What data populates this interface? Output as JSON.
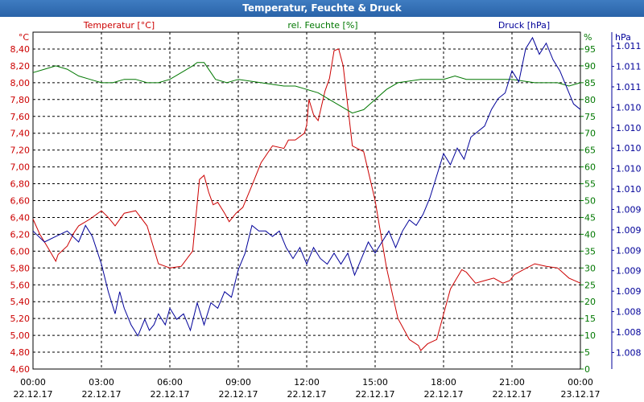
{
  "window": {
    "title": "Temperatur, Feuchte & Druck"
  },
  "colors": {
    "temperature": "#cc0000",
    "humidity": "#007700",
    "pressure": "#000099",
    "titlebar": "#2f6cb3"
  },
  "chart_data": {
    "type": "line",
    "title": "Temperatur, Feuchte & Druck",
    "grid": true,
    "x_ticks": [
      {
        "time": "00:00",
        "date": "22.12.17"
      },
      {
        "time": "03:00",
        "date": "22.12.17"
      },
      {
        "time": "06:00",
        "date": "22.12.17"
      },
      {
        "time": "09:00",
        "date": "22.12.17"
      },
      {
        "time": "12:00",
        "date": "22.12.17"
      },
      {
        "time": "15:00",
        "date": "22.12.17"
      },
      {
        "time": "18:00",
        "date": "22.12.17"
      },
      {
        "time": "21:00",
        "date": "22.12.17"
      },
      {
        "time": "00:00",
        "date": "23.12.17"
      }
    ],
    "x_hours_range": [
      0,
      24
    ],
    "axes": {
      "temperature": {
        "label": "Temperatur [°C]",
        "unit": "°C",
        "range": [
          4.6,
          8.6
        ],
        "ticks": [
          "4,60",
          "4,80",
          "5,00",
          "5,20",
          "5,40",
          "5,60",
          "5,80",
          "6,00",
          "6,20",
          "6,40",
          "6,60",
          "6,80",
          "7,00",
          "7,20",
          "7,40",
          "7,60",
          "7,80",
          "8,00",
          "8,20",
          "8,40"
        ]
      },
      "humidity": {
        "label": "rel. Feuchte [%]",
        "unit": "%",
        "range": [
          0,
          100
        ],
        "ticks": [
          "0",
          "5",
          "10",
          "15",
          "20",
          "25",
          "30",
          "35",
          "40",
          "45",
          "50",
          "55",
          "60",
          "65",
          "70",
          "75",
          "80",
          "85",
          "90",
          "95"
        ]
      },
      "pressure": {
        "label": "Druck [hPa]",
        "unit": "hPa",
        "range": [
          1007.9,
          1010.95
        ],
        "ticks": [
          "1.008",
          "1.008",
          "1.008",
          "1.009",
          "1.009",
          "1.009",
          "1.009",
          "1.009",
          "1.010",
          "1.010",
          "1.010",
          "1.010",
          "1.010",
          "1.011",
          "1.011",
          "1.011"
        ]
      }
    },
    "series": [
      {
        "name": "Temperatur [°C]",
        "x": [
          0,
          0.3,
          0.7,
          1.0,
          1.1,
          1.5,
          1.8,
          2.0,
          2.5,
          3.0,
          3.3,
          3.6,
          4.0,
          4.5,
          5.0,
          5.5,
          5.8,
          6.0,
          6.5,
          7.0,
          7.3,
          7.5,
          7.7,
          7.9,
          8.1,
          8.4,
          8.6,
          8.9,
          9.2,
          9.6,
          10.0,
          10.5,
          11.0,
          11.2,
          11.5,
          11.9,
          12.0,
          12.1,
          12.3,
          12.5,
          12.8,
          13.0,
          13.2,
          13.4,
          13.6,
          14.0,
          14.5,
          15.0,
          15.5,
          16.0,
          16.5,
          16.9,
          17.0,
          17.3,
          17.7,
          18.0,
          18.3,
          18.8,
          19.0,
          19.4,
          19.8,
          20.2,
          20.6,
          20.9,
          21.1,
          21.5,
          22.0,
          22.5,
          23.0,
          23.5,
          24.0
        ],
        "values": [
          6.38,
          6.2,
          6.02,
          5.88,
          5.96,
          6.06,
          6.22,
          6.3,
          6.38,
          6.48,
          6.4,
          6.3,
          6.45,
          6.48,
          6.3,
          5.85,
          5.82,
          5.8,
          5.82,
          6.0,
          6.85,
          6.9,
          6.7,
          6.55,
          6.58,
          6.45,
          6.35,
          6.45,
          6.52,
          6.78,
          7.05,
          7.25,
          7.22,
          7.32,
          7.32,
          7.4,
          7.5,
          7.8,
          7.62,
          7.55,
          7.9,
          8.05,
          8.38,
          8.4,
          8.2,
          7.25,
          7.18,
          6.6,
          5.8,
          5.2,
          4.95,
          4.88,
          4.82,
          4.9,
          4.95,
          5.25,
          5.55,
          5.78,
          5.75,
          5.62,
          5.65,
          5.68,
          5.62,
          5.65,
          5.72,
          5.78,
          5.85,
          5.82,
          5.8,
          5.68,
          5.62
        ]
      },
      {
        "name": "rel. Feuchte [%]",
        "x": [
          0,
          0.5,
          1.0,
          1.5,
          2.0,
          2.5,
          3.0,
          3.5,
          4.0,
          4.5,
          5.0,
          5.5,
          6.0,
          6.5,
          7.0,
          7.2,
          7.5,
          8.0,
          8.5,
          9.0,
          10.0,
          11.0,
          11.5,
          12.0,
          12.5,
          13.0,
          13.5,
          14.0,
          14.5,
          15.0,
          15.5,
          16.0,
          17.0,
          18.0,
          18.5,
          19.0,
          20.0,
          21.0,
          22.0,
          22.5,
          23.0,
          23.5,
          24.0
        ],
        "values": [
          88,
          89,
          90,
          89,
          87,
          86,
          85,
          85,
          86,
          86,
          85,
          85,
          86,
          88,
          90,
          91,
          91,
          86,
          85,
          86,
          85,
          84,
          84,
          83,
          82,
          80,
          78,
          76,
          77,
          80,
          83,
          85,
          86,
          86,
          87,
          86,
          86,
          86,
          85,
          85,
          85,
          84,
          85
        ]
      },
      {
        "name": "Druck [hPa]",
        "x": [
          0,
          0.5,
          1.0,
          1.5,
          2.0,
          2.3,
          2.6,
          3.0,
          3.3,
          3.6,
          3.8,
          4.0,
          4.3,
          4.6,
          4.9,
          5.1,
          5.3,
          5.5,
          5.8,
          6.0,
          6.3,
          6.6,
          6.9,
          7.2,
          7.5,
          7.8,
          8.1,
          8.4,
          8.7,
          9.0,
          9.3,
          9.6,
          9.9,
          10.2,
          10.5,
          10.8,
          11.1,
          11.4,
          11.7,
          12.0,
          12.3,
          12.6,
          12.9,
          13.2,
          13.5,
          13.8,
          14.1,
          14.4,
          14.7,
          15.0,
          15.3,
          15.6,
          15.9,
          16.2,
          16.5,
          16.8,
          17.1,
          17.4,
          17.7,
          18.0,
          18.3,
          18.6,
          18.9,
          19.2,
          19.5,
          19.8,
          20.1,
          20.4,
          20.7,
          21.0,
          21.3,
          21.6,
          21.9,
          22.2,
          22.5,
          22.8,
          23.1,
          23.4,
          23.7,
          24.0
        ],
        "values": [
          1009.15,
          1009.05,
          1009.1,
          1009.15,
          1009.05,
          1009.2,
          1009.1,
          1008.85,
          1008.6,
          1008.4,
          1008.6,
          1008.45,
          1008.3,
          1008.2,
          1008.35,
          1008.25,
          1008.3,
          1008.4,
          1008.3,
          1008.45,
          1008.35,
          1008.4,
          1008.25,
          1008.5,
          1008.3,
          1008.5,
          1008.45,
          1008.6,
          1008.55,
          1008.8,
          1008.95,
          1009.2,
          1009.15,
          1009.15,
          1009.1,
          1009.15,
          1009.0,
          1008.9,
          1009.0,
          1008.85,
          1009.0,
          1008.9,
          1008.85,
          1008.95,
          1008.85,
          1008.95,
          1008.75,
          1008.9,
          1009.05,
          1008.95,
          1009.05,
          1009.15,
          1009.0,
          1009.15,
          1009.25,
          1009.2,
          1009.3,
          1009.45,
          1009.65,
          1009.85,
          1009.75,
          1009.9,
          1009.8,
          1010.0,
          1010.05,
          1010.1,
          1010.25,
          1010.35,
          1010.4,
          1010.6,
          1010.5,
          1010.8,
          1010.9,
          1010.75,
          1010.85,
          1010.7,
          1010.6,
          1010.45,
          1010.3,
          1010.25
        ]
      }
    ]
  }
}
